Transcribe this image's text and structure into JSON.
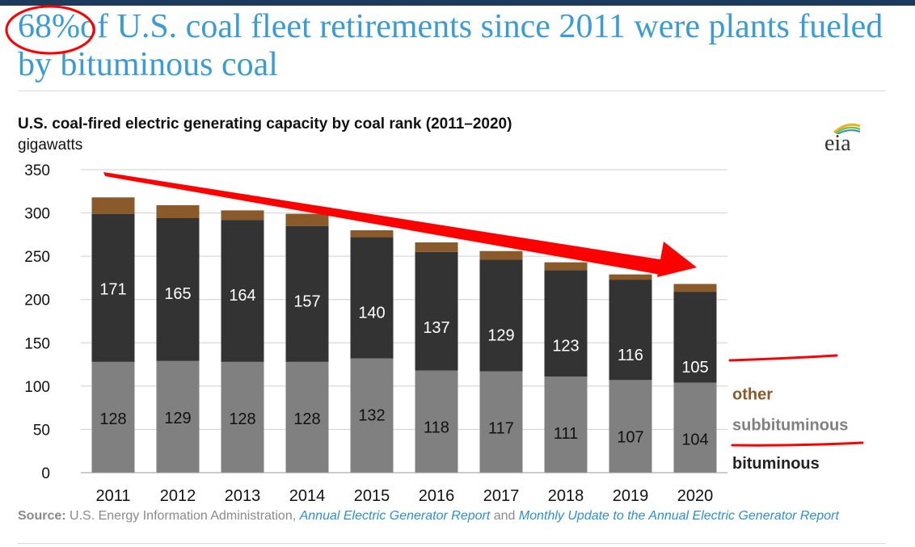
{
  "headline": {
    "percent": "68%",
    "rest": "of U.S. coal fleet retirements since 2011 were plants fueled by bituminous coal"
  },
  "logo_text": "eia",
  "source": {
    "label": "Source:",
    "text1": "U.S. Energy Information Administration,",
    "link1": "Annual Electric Generator Report",
    "text2": "and",
    "link2": "Monthly Update to the Annual Electric Generator Report"
  },
  "colors": {
    "subbituminous": "#808080",
    "bituminous": "#333333",
    "other": "#8b5a2b",
    "annotation": "#ff0000",
    "headline": "#3a9bd5"
  },
  "chart_data": {
    "type": "bar",
    "stacked": true,
    "title": "U.S. coal-fired electric generating capacity by coal rank (2011–2020)",
    "ylabel": "gigawatts",
    "ylim": [
      0,
      350
    ],
    "yticks": [
      0,
      50,
      100,
      150,
      200,
      250,
      300,
      350
    ],
    "grid": true,
    "categories": [
      "2011",
      "2012",
      "2013",
      "2014",
      "2015",
      "2016",
      "2017",
      "2018",
      "2019",
      "2020"
    ],
    "series": [
      {
        "name": "subbituminous",
        "values": [
          128,
          129,
          128,
          128,
          132,
          118,
          117,
          111,
          107,
          104
        ],
        "labels": [
          "128",
          "129",
          "128",
          "128",
          "132",
          "118",
          "117",
          "111",
          "107",
          "104"
        ]
      },
      {
        "name": "bituminous",
        "values": [
          171,
          165,
          164,
          157,
          140,
          137,
          129,
          123,
          116,
          105
        ],
        "labels": [
          "171",
          "165",
          "164",
          "157",
          "140",
          "137",
          "129",
          "123",
          "116",
          "105"
        ]
      },
      {
        "name": "other",
        "values": [
          19,
          15,
          11,
          14,
          8,
          11,
          10,
          9,
          6,
          9
        ]
      }
    ],
    "legend_placement": "right, inline labels"
  }
}
